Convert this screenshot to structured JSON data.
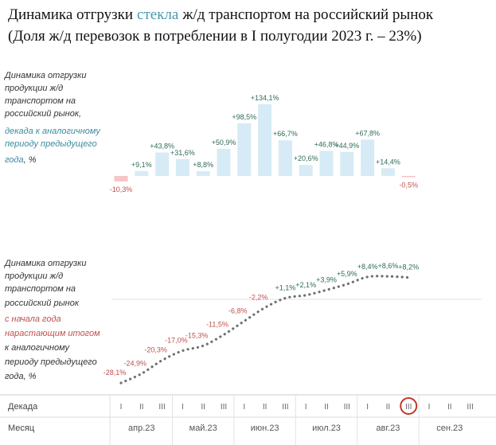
{
  "title": {
    "line1_part1": "Динамика отгрузки",
    "line1_highlight": "стекла",
    "line1_part2": "ж/д транспортом на российский рынок",
    "line2": "(Доля ж/д перевозок в потреблении в I полугодии 2023 г. – 23%)"
  },
  "colors": {
    "highlight": "#4a9ab0",
    "bar": "#d6ebf5",
    "bar_negative": "#f4c6c4",
    "positive_label": "#2e6b5b",
    "negative_label": "#c0504d",
    "teal_text": "#3c8aa0",
    "red_text": "#c0504d",
    "dots": "#707070",
    "circle": "#c0392b"
  },
  "top_description": {
    "lines_normal": [
      "Динамика отгрузки",
      "продукции ж/д",
      "транспортом на",
      "российский рынок,"
    ],
    "lines_colored": [
      "декада к аналогичному",
      "периоду предыдущего"
    ],
    "last_colored": "года",
    "last_normal": ", %"
  },
  "bottom_description": {
    "lines_normal": [
      "Динамика отгрузки",
      "продукции ж/д",
      "транспортом на",
      "российский рынок"
    ],
    "lines_colored": [
      "с начала года",
      "нарастающим итогом"
    ],
    "lines_after": [
      "к аналогичному",
      "периоду предыдущего",
      "года, %"
    ]
  },
  "axis": {
    "decade_label": "Декада",
    "month_label": "Месяц",
    "decade_marks": [
      "I",
      "II",
      "III"
    ],
    "months": [
      "апр.23",
      "май.23",
      "июн.23",
      "июл.23",
      "авг.23",
      "сен.23"
    ]
  },
  "chart_data": [
    {
      "type": "bar",
      "categories": [
        "апр.23 I",
        "апр.23 II",
        "апр.23 III",
        "май.23 I",
        "май.23 II",
        "май.23 III",
        "июн.23 I",
        "июн.23 II",
        "июн.23 III",
        "июл.23 I",
        "июл.23 II",
        "июл.23 III",
        "авг.23 I",
        "авг.23 II",
        "авг.23 III"
      ],
      "values": [
        -10.3,
        9.1,
        43.8,
        31.6,
        8.8,
        50.9,
        98.5,
        134.1,
        66.7,
        20.6,
        46.8,
        44.9,
        67.8,
        14.4,
        -0.5
      ],
      "labels": [
        "-10,3%",
        "+9,1%",
        "+43,8%",
        "+31,6%",
        "+8,8%",
        "+50,9%",
        "+98,5%",
        "+134,1%",
        "+66,7%",
        "+20,6%",
        "+46,8%",
        "+44,9%",
        "+67,8%",
        "+14,4%",
        "-0,5%"
      ],
      "ylim": [
        -15,
        140
      ]
    },
    {
      "type": "line",
      "categories": [
        "апр.23 I",
        "апр.23 II",
        "апр.23 III",
        "май.23 I",
        "май.23 II",
        "май.23 III",
        "июн.23 I",
        "июн.23 II",
        "июн.23 III",
        "июл.23 I",
        "июл.23 II",
        "июл.23 III",
        "авг.23 I",
        "авг.23 II",
        "авг.23 III"
      ],
      "values": [
        -28.1,
        -24.9,
        -20.3,
        -17.0,
        -15.3,
        -11.5,
        -6.8,
        -2.2,
        1.1,
        2.1,
        3.9,
        5.9,
        8.4,
        8.6,
        8.2
      ],
      "labels": [
        "-28,1%",
        "-24,9%",
        "-20,3%",
        "-17,0%",
        "-15,3%",
        "-11,5%",
        "-6,8%",
        "-2,2%",
        "+1,1%",
        "+2,1%",
        "+3,9%",
        "+5,9%",
        "+8,4%",
        "+8,6%",
        "+8,2%"
      ],
      "style": "dotted",
      "ylim": [
        -30,
        10
      ]
    }
  ]
}
